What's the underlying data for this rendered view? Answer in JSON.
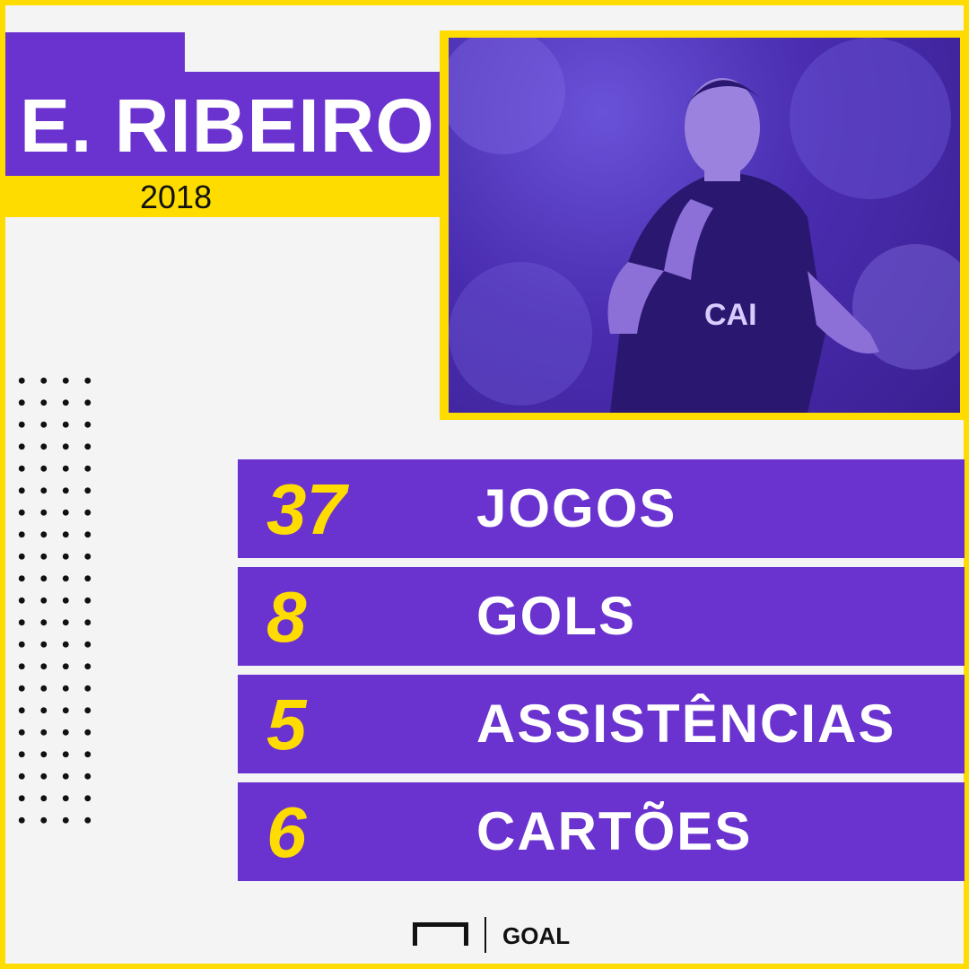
{
  "header": {
    "player_name": "E. RIBEIRO",
    "season": "2018"
  },
  "photo": {
    "icon": "player-photo-icon",
    "shirt_text": "CAI"
  },
  "stats": [
    {
      "value": "37",
      "label": "JOGOS"
    },
    {
      "value": "8",
      "label": "GOLS"
    },
    {
      "value": "5",
      "label": "ASSISTÊNCIAS"
    },
    {
      "value": "6",
      "label": "CARTÕES"
    }
  ],
  "brand": {
    "name": "GOAL"
  },
  "colors": {
    "purple": "#6a32cf",
    "yellow": "#ffdc00",
    "background": "#f4f4f4"
  }
}
